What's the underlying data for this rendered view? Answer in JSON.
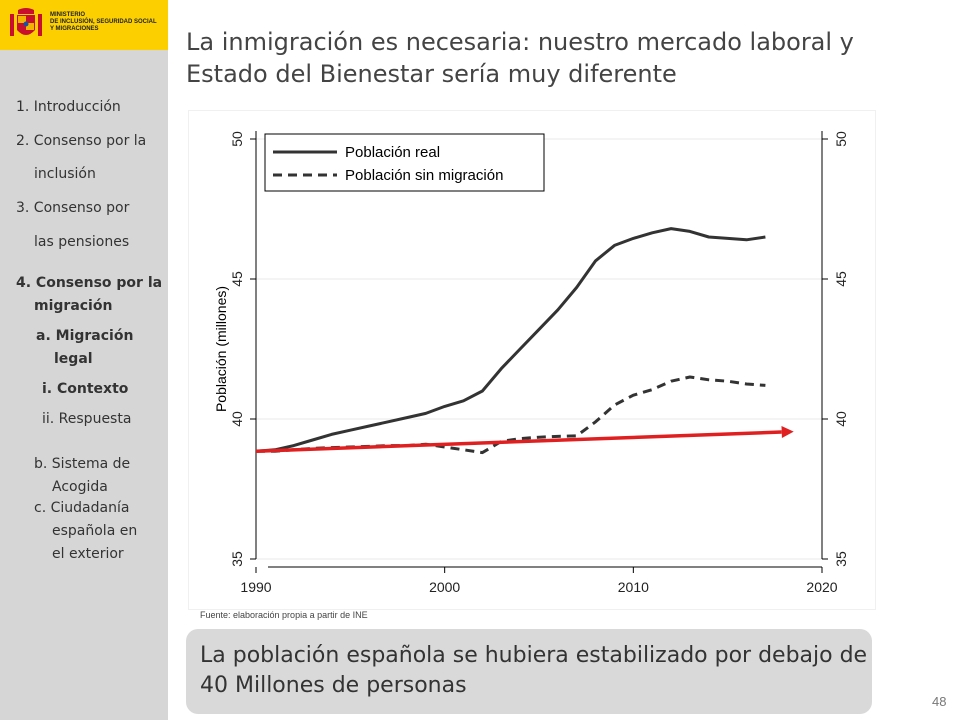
{
  "brand": {
    "ministry_lines": [
      "MINISTERIO",
      "DE INCLUSIÓN, SEGURIDAD SOCIAL",
      "Y MIGRACIONES"
    ],
    "band_color": "#fcd000",
    "icon": "coat-of-arms-icon"
  },
  "sidebar": {
    "items": [
      {
        "label": "1. Introducción"
      },
      {
        "label": "2. Consenso por la"
      },
      {
        "label": "inclusión"
      },
      {
        "label": "3. Consenso por"
      },
      {
        "label": "las pensiones"
      },
      {
        "label": "4. Consenso por la"
      },
      {
        "label": "migración"
      },
      {
        "label": "a. Migración"
      },
      {
        "label": "legal"
      },
      {
        "label": "i.  Contexto"
      },
      {
        "label": "ii. Respuesta"
      },
      {
        "label": "b. Sistema de"
      },
      {
        "label": "Acogida"
      },
      {
        "label": "c.  Ciudadanía"
      },
      {
        "label": "española en"
      },
      {
        "label": "el exterior"
      }
    ]
  },
  "title": {
    "line1": "La inmigración es necesaria: nuestro mercado laboral y",
    "line2": "Estado del Bienestar sería muy diferente"
  },
  "source": "Fuente:  elaboración propia a partir de INE",
  "callout": {
    "line1": "La población española se hubiera estabilizado por debajo de",
    "line2": "40 Millones de personas"
  },
  "page_number": "48",
  "chart_data": {
    "type": "line",
    "ylabel": "Población (millones)",
    "xlabel": "",
    "xlim": [
      1990,
      2020
    ],
    "ylim": [
      35,
      50
    ],
    "x_ticks": [
      1990,
      2000,
      2010,
      2020
    ],
    "y_ticks": [
      35,
      40,
      45,
      50
    ],
    "grid": true,
    "legend_position": "top-left",
    "series": [
      {
        "name": "Población real",
        "style": "solid",
        "color": "#333333",
        "x": [
          1990,
          1991,
          1992,
          1993,
          1994,
          1995,
          1996,
          1997,
          1998,
          1999,
          2000,
          2001,
          2002,
          2003,
          2004,
          2005,
          2006,
          2007,
          2008,
          2009,
          2010,
          2011,
          2012,
          2013,
          2014,
          2015,
          2016,
          2017
        ],
        "y": [
          38.85,
          38.9,
          39.05,
          39.25,
          39.45,
          39.6,
          39.75,
          39.9,
          40.05,
          40.2,
          40.45,
          40.65,
          41.0,
          41.8,
          42.5,
          43.2,
          43.9,
          44.7,
          45.65,
          46.2,
          46.45,
          46.65,
          46.8,
          46.7,
          46.5,
          46.45,
          46.4,
          46.5
        ]
      },
      {
        "name": "Población sin migración",
        "style": "dashed",
        "color": "#333333",
        "x": [
          1990,
          1991,
          1992,
          1993,
          1994,
          1995,
          1996,
          1997,
          1998,
          1999,
          2000,
          2001,
          2002,
          2003,
          2004,
          2005,
          2006,
          2007,
          2008,
          2009,
          2010,
          2011,
          2012,
          2013,
          2014,
          2015,
          2016,
          2017
        ],
        "y": [
          38.85,
          38.85,
          38.9,
          38.95,
          38.98,
          39.0,
          39.02,
          39.05,
          39.05,
          39.1,
          39.0,
          38.9,
          38.8,
          39.2,
          39.3,
          39.35,
          39.38,
          39.4,
          39.9,
          40.5,
          40.85,
          41.05,
          41.35,
          41.5,
          41.4,
          41.35,
          41.25,
          41.2
        ]
      }
    ],
    "annotation": {
      "type": "arrow",
      "color": "#e02020",
      "from": [
        1990,
        38.85
      ],
      "to": [
        2018.5,
        39.55
      ]
    }
  }
}
